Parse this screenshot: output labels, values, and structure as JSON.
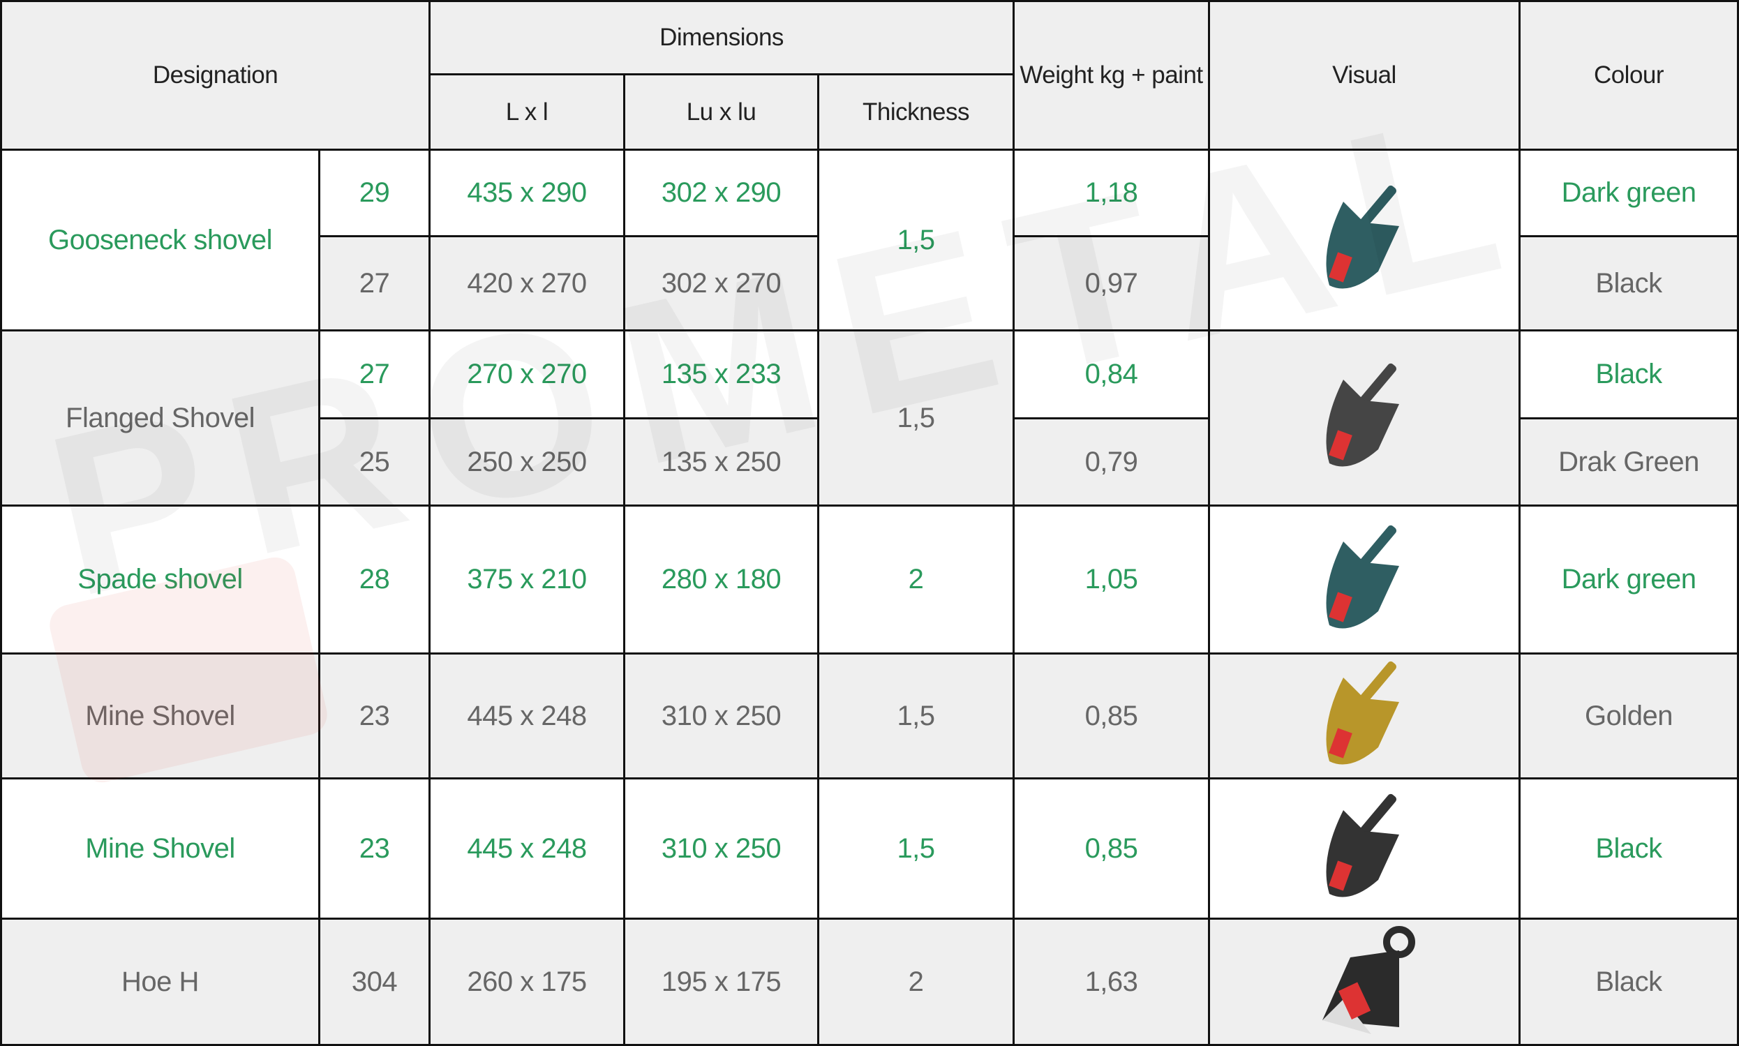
{
  "colors": {
    "accent_green": "#2a9a5c",
    "text_gray": "#666666",
    "header_text": "#222222",
    "row_gray": "#efefef",
    "row_white": "#ffffff",
    "border": "#111111"
  },
  "header": {
    "designation": "Designation",
    "dimensions": "Dimensions",
    "lxl": "L x l",
    "luxlu": "Lu x lu",
    "thickness": "Thickness",
    "weight": "Weight kg + paint",
    "visual": "Visual",
    "colour": "Colour"
  },
  "watermark": "PROMETAL",
  "products": [
    {
      "name": "Gooseneck shovel",
      "thickness": "1,5",
      "image": "teal-gooseneck-shovel",
      "image_color": "#2f5e62",
      "variants": [
        {
          "no": "29",
          "lxl": "435 x 290",
          "luxlu": "302 x 290",
          "weight": "1,18",
          "colour": "Dark green"
        },
        {
          "no": "27",
          "lxl": "420 x 270",
          "luxlu": "302 x 270",
          "weight": "0,97",
          "colour": "Black"
        }
      ]
    },
    {
      "name": "Flanged Shovel",
      "thickness": "1,5",
      "image": "black-flanged-shovel",
      "image_color": "#454545",
      "variants": [
        {
          "no": "27",
          "lxl": "270 x 270",
          "luxlu": "135 x 233",
          "weight": "0,84",
          "colour": "Black"
        },
        {
          "no": "25",
          "lxl": "250 x 250",
          "luxlu": "135 x 250",
          "weight": "0,79",
          "colour": "Drak Green"
        }
      ]
    },
    {
      "name": "Spade shovel",
      "thickness": "2",
      "image": "teal-spade-shovel",
      "image_color": "#2f5e62",
      "variants": [
        {
          "no": "28",
          "lxl": "375 x 210",
          "luxlu": "280 x 180",
          "weight": "1,05",
          "colour": "Dark green"
        }
      ]
    },
    {
      "name": "Mine Shovel",
      "thickness": "1,5",
      "image": "golden-mine-shovel",
      "image_color": "#b8962a",
      "variants": [
        {
          "no": "23",
          "lxl": "445 x 248",
          "luxlu": "310 x 250",
          "weight": "0,85",
          "colour": "Golden"
        }
      ]
    },
    {
      "name": "Mine Shovel",
      "thickness": "1,5",
      "image": "black-mine-shovel",
      "image_color": "#333333",
      "variants": [
        {
          "no": "23",
          "lxl": "445 x 248",
          "luxlu": "310 x 250",
          "weight": "0,85",
          "colour": "Black"
        }
      ]
    },
    {
      "name": "Hoe H",
      "thickness": "2",
      "image": "black-hoe",
      "image_color": "#2b2b2b",
      "variants": [
        {
          "no": "304",
          "lxl": "260 x 175",
          "luxlu": "195 x 175",
          "weight": "1,63",
          "colour": "Black"
        }
      ]
    }
  ]
}
